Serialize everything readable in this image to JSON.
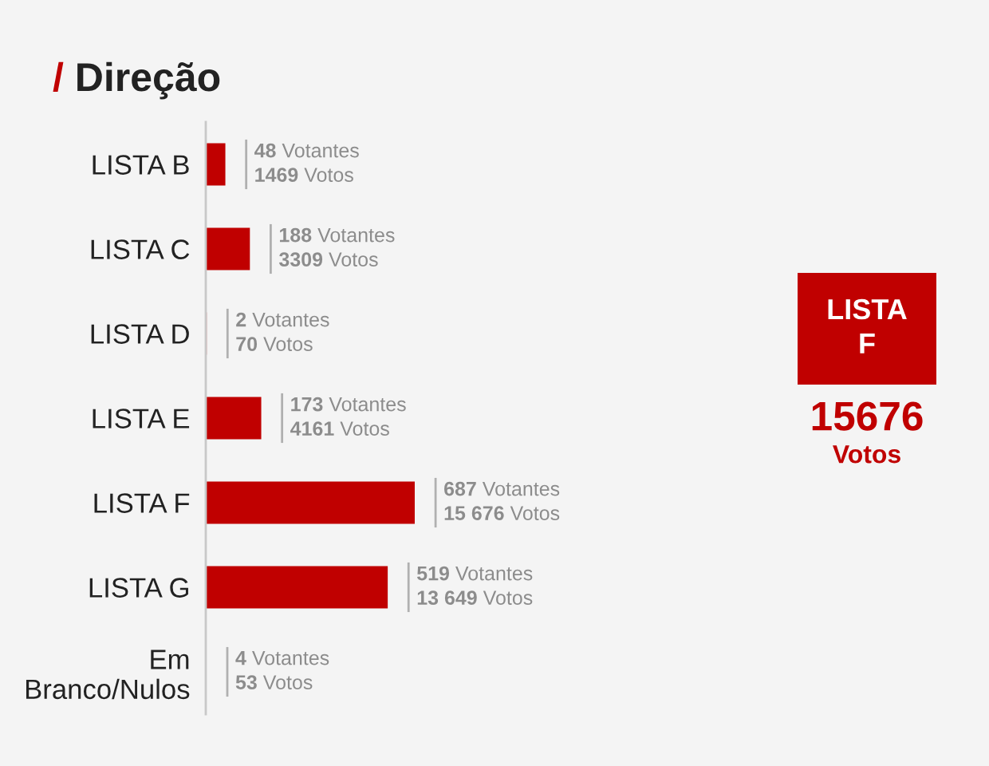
{
  "chart_data": [
    {
      "type": "bar",
      "orientation": "horizontal",
      "title": "/ Direção",
      "categories": [
        "LISTA B",
        "LISTA C",
        "LISTA D",
        "LISTA E",
        "LISTA F",
        "LISTA G",
        "Em Branco/Nulos"
      ],
      "values": [
        1469,
        3309,
        70,
        4161,
        15676,
        13649,
        53
      ],
      "color": "#c00000",
      "value_labels": [
        "48 Votantes\n1469 Votos",
        "188 Votantes\n3309 Votos",
        "2 Votantes\n70 Votos",
        "173 Votantes\n4161 Votos",
        "687 Votantes\n15 676 Votos",
        "519 Votantes\n13 649 Votos",
        "4 Votantes\n53 Votos"
      ]
    },
    {
      "type": "other",
      "color": "#c00000",
      "annotations": [
        "LISTA F",
        "15676",
        "Votos"
      ]
    }
  ]
}
